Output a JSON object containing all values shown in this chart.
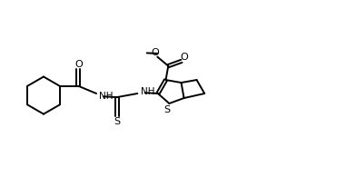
{
  "bg_color": "#ffffff",
  "line_color": "#000000",
  "lw": 1.4,
  "fs": 8,
  "xlim": [
    0,
    9.5
  ],
  "ylim": [
    -1.8,
    1.8
  ],
  "figsize": [
    3.92,
    2.06
  ],
  "dpi": 100
}
